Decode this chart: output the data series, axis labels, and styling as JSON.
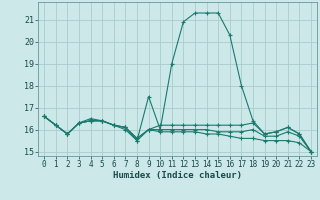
{
  "title": "",
  "xlabel": "Humidex (Indice chaleur)",
  "bg_color": "#cce8e8",
  "grid_color": "#aacccc",
  "line_color": "#1a7a6e",
  "xlim": [
    -0.5,
    23.5
  ],
  "ylim": [
    14.8,
    21.8
  ],
  "yticks": [
    15,
    16,
    17,
    18,
    19,
    20,
    21
  ],
  "xticks": [
    0,
    1,
    2,
    3,
    4,
    5,
    6,
    7,
    8,
    9,
    10,
    11,
    12,
    13,
    14,
    15,
    16,
    17,
    18,
    19,
    20,
    21,
    22,
    23
  ],
  "lines": [
    {
      "x": [
        0,
        1,
        2,
        3,
        4,
        5,
        6,
        7,
        8,
        9,
        10,
        11,
        12,
        13,
        14,
        15,
        16,
        17,
        18,
        19,
        20,
        21,
        22,
        23
      ],
      "y": [
        16.6,
        16.2,
        15.8,
        16.3,
        16.4,
        16.4,
        16.2,
        16.1,
        15.5,
        17.5,
        16.0,
        19.0,
        20.9,
        21.3,
        21.3,
        21.3,
        20.3,
        18.0,
        16.4,
        15.8,
        15.9,
        16.1,
        15.8,
        15.0
      ]
    },
    {
      "x": [
        0,
        1,
        2,
        3,
        4,
        5,
        6,
        7,
        8,
        9,
        10,
        11,
        12,
        13,
        14,
        15,
        16,
        17,
        18,
        19,
        20,
        21,
        22,
        23
      ],
      "y": [
        16.6,
        16.2,
        15.8,
        16.3,
        16.5,
        16.4,
        16.2,
        16.1,
        15.6,
        16.0,
        16.2,
        16.2,
        16.2,
        16.2,
        16.2,
        16.2,
        16.2,
        16.2,
        16.3,
        15.8,
        15.9,
        16.1,
        15.8,
        15.0
      ]
    },
    {
      "x": [
        0,
        1,
        2,
        3,
        4,
        5,
        6,
        7,
        8,
        9,
        10,
        11,
        12,
        13,
        14,
        15,
        16,
        17,
        18,
        19,
        20,
        21,
        22,
        23
      ],
      "y": [
        16.6,
        16.2,
        15.8,
        16.3,
        16.4,
        16.4,
        16.2,
        16.0,
        15.5,
        16.0,
        16.0,
        16.0,
        16.0,
        16.0,
        16.0,
        15.9,
        15.9,
        15.9,
        16.0,
        15.7,
        15.7,
        15.9,
        15.7,
        15.0
      ]
    },
    {
      "x": [
        0,
        1,
        2,
        3,
        4,
        5,
        6,
        7,
        8,
        9,
        10,
        11,
        12,
        13,
        14,
        15,
        16,
        17,
        18,
        19,
        20,
        21,
        22,
        23
      ],
      "y": [
        16.6,
        16.2,
        15.8,
        16.3,
        16.4,
        16.4,
        16.2,
        16.1,
        15.6,
        16.0,
        15.9,
        15.9,
        15.9,
        15.9,
        15.8,
        15.8,
        15.7,
        15.6,
        15.6,
        15.5,
        15.5,
        15.5,
        15.4,
        15.0
      ]
    }
  ]
}
